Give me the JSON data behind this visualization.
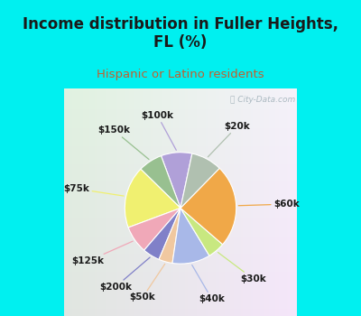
{
  "title": "Income distribution in Fuller Heights,\nFL (%)",
  "subtitle": "Hispanic or Latino residents",
  "labels": [
    "$100k",
    "$150k",
    "$75k",
    "$125k",
    "$200k",
    "$50k",
    "$40k",
    "$30k",
    "$60k",
    "$20k"
  ],
  "sizes": [
    9,
    7,
    18,
    8,
    5,
    4,
    11,
    5,
    24,
    9
  ],
  "colors": [
    "#b0a0d8",
    "#98c090",
    "#f0f070",
    "#f0a8b8",
    "#8080c8",
    "#f0c8a0",
    "#a8b8e8",
    "#c8e880",
    "#f0a848",
    "#b0c0b0"
  ],
  "background_top": "#00f0f0",
  "background_chart_tl": "#e0f5e8",
  "background_chart_br": "#c0e8f0",
  "label_fontsize": 7.5,
  "title_fontsize": 12,
  "subtitle_fontsize": 9.5,
  "subtitle_color": "#c06030",
  "startangle": 78,
  "title_color": "#1a1a1a"
}
